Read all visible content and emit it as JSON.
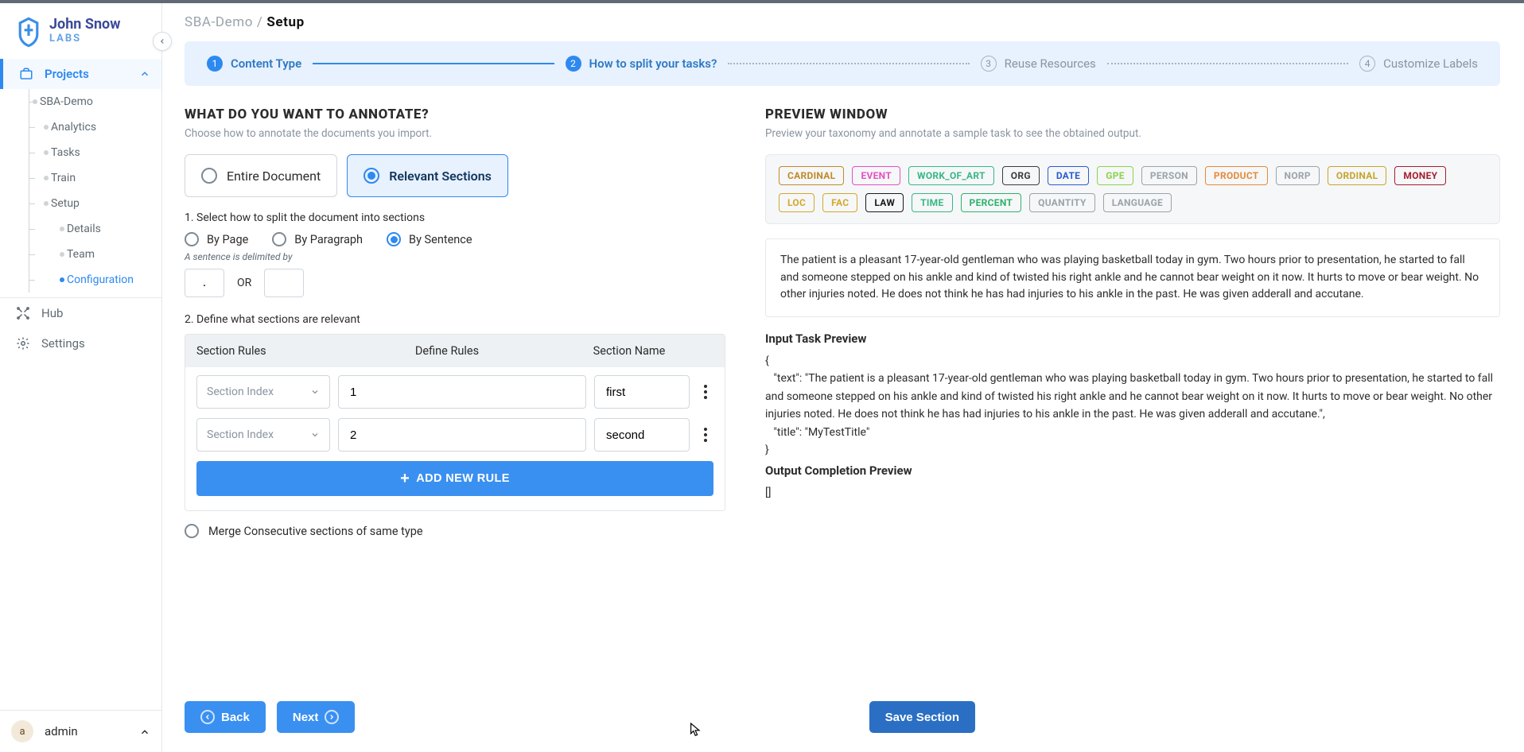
{
  "brand": {
    "name": "John Snow",
    "sub": "LABS"
  },
  "breadcrumb": {
    "project": "SBA-Demo",
    "page": "Setup"
  },
  "sidebar": {
    "projects_label": "Projects",
    "project_name": "SBA-Demo",
    "items": [
      "Analytics",
      "Tasks",
      "Train",
      "Setup"
    ],
    "setup_children": [
      "Details",
      "Team",
      "Configuration"
    ],
    "hub": "Hub",
    "settings": "Settings"
  },
  "user": {
    "initial": "a",
    "name": "admin"
  },
  "stepper": {
    "s1": "Content Type",
    "s2": "How to split your tasks?",
    "s3": "Reuse Resources",
    "s4": "Customize Labels"
  },
  "annotate": {
    "heading": "WHAT DO YOU WANT TO ANNOTATE?",
    "sub": "Choose how to annotate the documents you import.",
    "opt_entire": "Entire Document",
    "opt_relevant": "Relevant Sections",
    "split_label": "1. Select how to split the document into sections",
    "by_page": "By Page",
    "by_paragraph": "By Paragraph",
    "by_sentence": "By Sentence",
    "delim_hint": "A sentence is delimited by",
    "delim1": ".",
    "or": "OR",
    "delim2": "",
    "define_label": "2. Define what sections are relevant",
    "col_rules": "Section Rules",
    "col_define": "Define Rules",
    "col_name": "Section Name",
    "select_placeholder": "Section Index",
    "rule1_val": "1",
    "rule1_name": "first",
    "rule2_val": "2",
    "rule2_name": "second",
    "add_rule": "ADD NEW RULE",
    "merge": "Merge Consecutive sections of same type"
  },
  "preview": {
    "heading": "PREVIEW WINDOW",
    "sub": "Preview your taxonomy and annotate a sample task to see the obtained output.",
    "labels": [
      {
        "t": "CARDINAL",
        "c": "#c08a2a"
      },
      {
        "t": "EVENT",
        "c": "#e54fc1"
      },
      {
        "t": "WORK_OF_ART",
        "c": "#36b884"
      },
      {
        "t": "ORG",
        "c": "#3b3b3b"
      },
      {
        "t": "DATE",
        "c": "#2a5bd1"
      },
      {
        "t": "GPE",
        "c": "#8bd34a"
      },
      {
        "t": "PERSON",
        "c": "#9aa3aa"
      },
      {
        "t": "PRODUCT",
        "c": "#e58a3a"
      },
      {
        "t": "NORP",
        "c": "#9aa3aa"
      },
      {
        "t": "ORDINAL",
        "c": "#c5a52b"
      },
      {
        "t": "MONEY",
        "c": "#a51e2f"
      },
      {
        "t": "LOC",
        "c": "#d4a72c"
      },
      {
        "t": "FAC",
        "c": "#d4a72c"
      },
      {
        "t": "LAW",
        "c": "#1a1a1a"
      },
      {
        "t": "TIME",
        "c": "#36b884"
      },
      {
        "t": "PERCENT",
        "c": "#2cb26b"
      },
      {
        "t": "QUANTITY",
        "c": "#9aa3aa"
      },
      {
        "t": "LANGUAGE",
        "c": "#9aa3aa"
      }
    ],
    "sample_text": "The patient is a pleasant 17-year-old gentleman who was playing basketball today in gym. Two hours prior to presentation, he started to fall and someone stepped on his ankle and kind of twisted his right ankle and he cannot bear weight on it now. It hurts to move or bear weight. No other injuries noted. He does not think he has had injuries to his ankle in the past. He was given adderall and accutane.",
    "input_title": "Input Task Preview",
    "output_title": "Output Completion Preview",
    "output_body": "[]",
    "json_text_key": "text",
    "json_title_key": "title",
    "json_title_val": "MyTestTitle"
  },
  "buttons": {
    "back": "Back",
    "next": "Next",
    "save": "Save Section"
  }
}
